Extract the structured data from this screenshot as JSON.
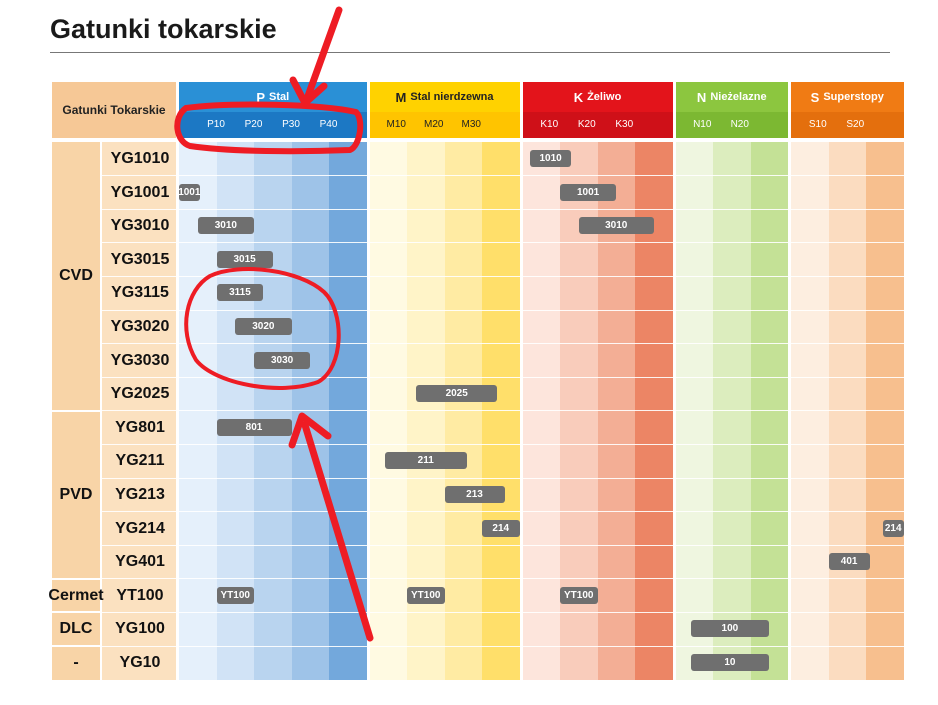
{
  "title": "Gatunki tokarskie",
  "table": {
    "corner_label": "Gatunki Tokarskie",
    "groups": [
      {
        "key": "P",
        "letter": "P",
        "name": "Stal",
        "subs": [
          "P10",
          "P20",
          "P30",
          "P40"
        ],
        "header_color": "#2a90d6",
        "sub_color": "#1c78c4",
        "cols": [
          "#e5f0fb",
          "#d1e3f6",
          "#b9d4ef",
          "#9ec3e8",
          "#73a8dc"
        ]
      },
      {
        "key": "M",
        "letter": "M",
        "name": "Stal nierdzewna",
        "subs": [
          "M10",
          "M20",
          "M30"
        ],
        "header_color": "#ffd200",
        "sub_color": "#ffc400",
        "cols": [
          "#fffae2",
          "#fff4c8",
          "#ffeba3",
          "#ffdf6a"
        ]
      },
      {
        "key": "K",
        "letter": "K",
        "name": "Żeliwo",
        "subs": [
          "K10",
          "K20",
          "K30"
        ],
        "header_color": "#e3141b",
        "sub_color": "#cf1018",
        "cols": [
          "#fde5dc",
          "#f9ccbb",
          "#f3ae95",
          "#ec8565"
        ]
      },
      {
        "key": "N",
        "letter": "N",
        "name": "Nieżelazne",
        "subs": [
          "N10",
          "N20"
        ],
        "header_color": "#8cc63f",
        "sub_color": "#7cb832",
        "cols": [
          "#eff6e0",
          "#dcedbe",
          "#c4e196"
        ]
      },
      {
        "key": "S",
        "letter": "S",
        "name": "Superstopy",
        "subs": [
          "S10",
          "S20"
        ],
        "header_color": "#f07b14",
        "sub_color": "#e46f0d",
        "cols": [
          "#fdeee0",
          "#fbdcc0",
          "#f7bf8e"
        ]
      }
    ],
    "coating_groups": [
      {
        "label": "CVD",
        "rows": 8
      },
      {
        "label": "PVD",
        "rows": 5
      },
      {
        "label": "Cermet",
        "rows": 1
      },
      {
        "label": "DLC",
        "rows": 1
      },
      {
        "label": "-",
        "rows": 1
      }
    ],
    "rows": [
      {
        "grade": "YG1010",
        "bars": [
          {
            "group": "K",
            "label": "1010",
            "from": 0.2,
            "to": 1.3
          }
        ]
      },
      {
        "grade": "YG1001",
        "bars": [
          {
            "group": "P",
            "label": "1001",
            "from": 0.0,
            "to": 0.55
          },
          {
            "group": "K",
            "label": "1001",
            "from": 1.0,
            "to": 2.5
          }
        ]
      },
      {
        "grade": "YG3010",
        "bars": [
          {
            "group": "P",
            "label": "3010",
            "from": 0.5,
            "to": 2.0
          },
          {
            "group": "K",
            "label": "3010",
            "from": 1.5,
            "to": 3.5
          }
        ]
      },
      {
        "grade": "YG3015",
        "bars": [
          {
            "group": "P",
            "label": "3015",
            "from": 1.0,
            "to": 2.5
          }
        ]
      },
      {
        "grade": "YG3115",
        "bars": [
          {
            "group": "P",
            "label": "3115",
            "from": 1.0,
            "to": 2.25
          }
        ]
      },
      {
        "grade": "YG3020",
        "bars": [
          {
            "group": "P",
            "label": "3020",
            "from": 1.5,
            "to": 3.0
          }
        ]
      },
      {
        "grade": "YG3030",
        "bars": [
          {
            "group": "P",
            "label": "3030",
            "from": 2.0,
            "to": 3.5
          }
        ]
      },
      {
        "grade": "YG2025",
        "bars": [
          {
            "group": "M",
            "label": "2025",
            "from": 1.25,
            "to": 3.4
          }
        ]
      },
      {
        "grade": "YG801",
        "bars": [
          {
            "group": "P",
            "label": "801",
            "from": 1.0,
            "to": 3.0
          }
        ]
      },
      {
        "grade": "YG211",
        "bars": [
          {
            "group": "M",
            "label": "211",
            "from": 0.4,
            "to": 2.6
          }
        ]
      },
      {
        "grade": "YG213",
        "bars": [
          {
            "group": "M",
            "label": "213",
            "from": 2.0,
            "to": 3.6
          }
        ]
      },
      {
        "grade": "YG214",
        "bars": [
          {
            "group": "M",
            "label": "214",
            "from": 3.0,
            "to": 4.0
          },
          {
            "group": "S",
            "label": "214",
            "from": 2.45,
            "to": 3.0
          }
        ]
      },
      {
        "grade": "YG401",
        "bars": [
          {
            "group": "S",
            "label": "401",
            "from": 1.0,
            "to": 2.1
          }
        ]
      },
      {
        "grade": "YT100",
        "bars": [
          {
            "group": "P",
            "label": "YT100",
            "from": 1.0,
            "to": 2.0
          },
          {
            "group": "M",
            "label": "YT100",
            "from": 1.0,
            "to": 2.0
          },
          {
            "group": "K",
            "label": "YT100",
            "from": 1.0,
            "to": 2.0
          }
        ]
      },
      {
        "grade": "YG100",
        "bars": [
          {
            "group": "N",
            "label": "100",
            "from": 0.4,
            "to": 2.5
          }
        ]
      },
      {
        "grade": "YG10",
        "bars": [
          {
            "group": "N",
            "label": "10",
            "from": 0.4,
            "to": 2.5
          }
        ]
      }
    ]
  },
  "annotations": {
    "color": "#ee1c24"
  }
}
